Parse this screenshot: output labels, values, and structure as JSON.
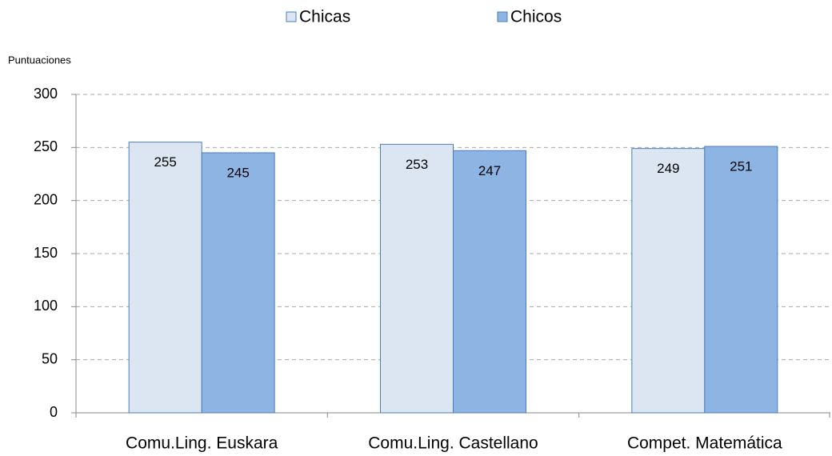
{
  "chart_data": {
    "type": "bar",
    "y_axis_label": "Puntuaciones",
    "categories": [
      "Comu.Ling. Euskara",
      "Comu.Ling. Castellano",
      "Compet. Matemática"
    ],
    "series": [
      {
        "name": "Chicas",
        "color": "#dce6f2",
        "values": [
          255,
          253,
          249
        ]
      },
      {
        "name": "Chicos",
        "color": "#8eb4e3",
        "values": [
          245,
          247,
          251
        ]
      }
    ],
    "ylim": [
      0,
      300
    ],
    "yticks": [
      0,
      50,
      100,
      150,
      200,
      250,
      300
    ],
    "grid": true,
    "legend": "top"
  }
}
